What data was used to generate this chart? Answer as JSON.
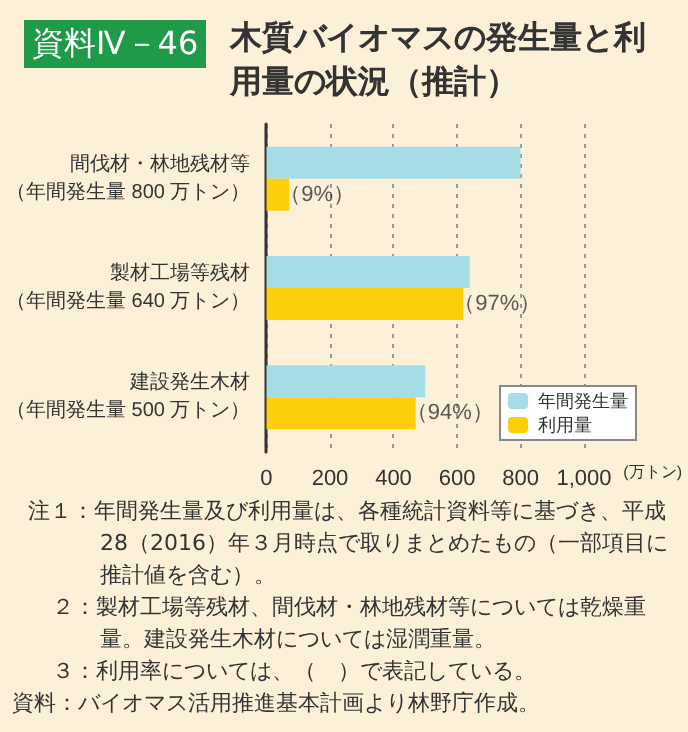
{
  "chart_data": {
    "type": "bar",
    "orientation": "horizontal",
    "subtitle": "資料Ⅳ－46",
    "title": "木質バイオマスの発生量と利用量の状況（推計）",
    "categories": [
      "間伐材・林地残材等（年間発生量 800 万トン）",
      "製材工場等残材（年間発生量 640 万トン）",
      "建設発生木材（年間発生量 500 万トン）"
    ],
    "series": [
      {
        "name": "年間発生量",
        "color": "#a6dce6",
        "values": [
          800,
          640,
          500
        ]
      },
      {
        "name": "利用量",
        "color": "#fccf0a",
        "values": [
          72,
          620,
          470
        ]
      }
    ],
    "xlabel": "(万トン)",
    "xlim": [
      0,
      1000
    ],
    "xticks": [
      0,
      200,
      400,
      600,
      800,
      {
        "value": 1000,
        "label": "1,000"
      }
    ],
    "grid": "x",
    "legend": "bottom right",
    "annotations": [
      {
        "text": "（9%）",
        "x": 72,
        "y": "間伐材・林地残材等（年間発生量 800 万トン）"
      },
      {
        "text": "（97%）",
        "x": 620,
        "y": "製材工場等残材（年間発生量 640 万トン）"
      },
      {
        "text": "（94%）",
        "x": 470,
        "y": "建設発生木材（年間発生量 500 万トン）"
      },
      "注１：年間発生量及び利用量は、各種統計資料等に基づき、平成28（2016）年３月時点で取りまとめたもの（一部項目に推計値を含む）。",
      "２：製材工場等残材、間伐材・林地残材等については乾燥重量。建設発生木材については湿潤重量。",
      "３：利用率については、（　）で表記している。",
      "資料：バイオマス活用推進基本計画より林野庁作成。"
    ]
  }
}
